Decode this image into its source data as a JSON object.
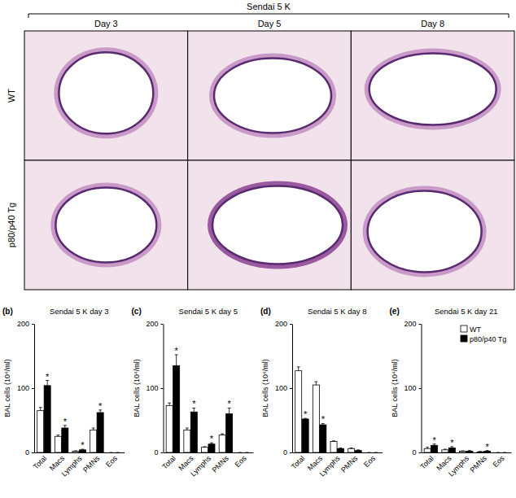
{
  "figure": {
    "title": "Sendai 5 K",
    "columns": [
      "Day 3",
      "Day 5",
      "Day 8"
    ],
    "rows": [
      "WT",
      "p80/p40 Tg"
    ]
  },
  "chart_data": [
    {
      "type": "bar",
      "panel": "(b)",
      "title": "Sendai 5 K day 3",
      "y_label": "BAL cells (10⁴/ml)",
      "categories": [
        "Total",
        "Macs",
        "Lymphs",
        "PMNs",
        "Eos"
      ],
      "series": [
        {
          "name": "WT",
          "color": "#ffffff",
          "values": [
            65,
            25,
            2,
            35,
            0
          ],
          "error": [
            5,
            2,
            0.5,
            3,
            0
          ]
        },
        {
          "name": "p80/p40 Tg",
          "color": "#000000",
          "values": [
            104,
            38,
            4,
            62,
            0
          ],
          "error": [
            8,
            4,
            1,
            4,
            0
          ]
        }
      ],
      "annotations": [
        {
          "text": "*",
          "category": 0,
          "series": 1
        },
        {
          "text": "*",
          "category": 1,
          "series": 1
        },
        {
          "text": "*",
          "category": 2,
          "series": 1
        },
        {
          "text": "*",
          "category": 3,
          "series": 1
        }
      ],
      "ylim": [
        0,
        200
      ],
      "yticks": [
        0,
        100,
        200
      ]
    },
    {
      "type": "bar",
      "panel": "(c)",
      "title": "Sendai 5 K day 5",
      "y_label": "BAL cells (10⁴/ml)",
      "categories": [
        "Total",
        "Macs",
        "Lymphs",
        "PMNs",
        "Eos"
      ],
      "series": [
        {
          "name": "WT",
          "color": "#ffffff",
          "values": [
            73,
            35,
            8,
            27,
            0
          ],
          "error": [
            4,
            3,
            1,
            2,
            0
          ]
        },
        {
          "name": "p80/p40 Tg",
          "color": "#000000",
          "values": [
            135,
            63,
            13,
            60,
            0
          ],
          "error": [
            17,
            6,
            2,
            9,
            0
          ]
        }
      ],
      "annotations": [
        {
          "text": "*",
          "category": 0,
          "series": 1
        },
        {
          "text": "*",
          "category": 1,
          "series": 1
        },
        {
          "text": "*",
          "category": 2,
          "series": 1
        },
        {
          "text": "*",
          "category": 3,
          "series": 1
        }
      ],
      "ylim": [
        0,
        200
      ],
      "yticks": [
        0,
        100,
        200
      ]
    },
    {
      "type": "bar",
      "panel": "(d)",
      "title": "Sendai 5 K day 8",
      "y_label": "BAL cells (10⁴/ml)",
      "categories": [
        "Total",
        "Macs",
        "Lymphs",
        "PMNs",
        "Eos"
      ],
      "series": [
        {
          "name": "WT",
          "color": "#ffffff",
          "values": [
            127,
            105,
            17,
            6,
            0
          ],
          "error": [
            6,
            5,
            1,
            1,
            0
          ]
        },
        {
          "name": "p80/p40 Tg",
          "color": "#000000",
          "values": [
            52,
            43,
            6,
            3,
            0
          ],
          "error": [
            1,
            2,
            1,
            1,
            0
          ]
        }
      ],
      "annotations": [
        {
          "text": "*",
          "category": 0,
          "series": 1
        },
        {
          "text": "*",
          "category": 1,
          "series": 1
        }
      ],
      "ylim": [
        0,
        200
      ],
      "yticks": [
        0,
        100,
        200
      ]
    },
    {
      "type": "bar",
      "panel": "(e)",
      "title": "Sendai 5 K day 21",
      "y_label": "BAL cells (10⁴/ml)",
      "categories": [
        "Total",
        "Macs",
        "Lymphs",
        "PMNs",
        "Eos"
      ],
      "series": [
        {
          "name": "WT",
          "color": "#ffffff",
          "values": [
            6,
            4,
            2,
            1,
            0
          ],
          "error": [
            2,
            1,
            0.5,
            0.5,
            0
          ]
        },
        {
          "name": "p80/p40 Tg",
          "color": "#000000",
          "values": [
            11,
            7,
            2,
            2,
            0
          ],
          "error": [
            2,
            2,
            1,
            1,
            0
          ]
        }
      ],
      "annotations": [
        {
          "text": "*",
          "category": 0,
          "series": 1
        },
        {
          "text": "*",
          "category": 1,
          "series": 1
        },
        {
          "text": "*",
          "category": 3,
          "series": 1
        }
      ],
      "ylim": [
        0,
        200
      ],
      "yticks": [
        0,
        100,
        200
      ],
      "legend": "top-right"
    }
  ]
}
